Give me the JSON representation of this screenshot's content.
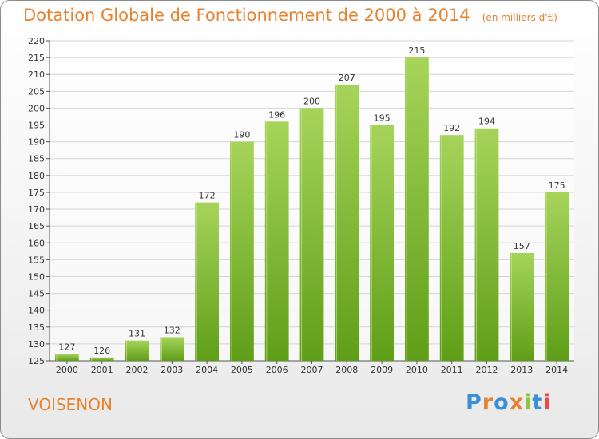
{
  "header": {
    "title": "Dotation Globale de Fonctionnement de 2000 à 2014",
    "unit": "(en milliers d'€)"
  },
  "footer": {
    "town": "VOISENON",
    "brand": "Proxiti"
  },
  "colors": {
    "title": "#e8822f",
    "bar_light": "#a6d45a",
    "bar_dark": "#5f9e18",
    "grid": "#d4d4d4",
    "axis": "#555555"
  },
  "chart_data": {
    "type": "bar",
    "title": "Dotation Globale de Fonctionnement de 2000 à 2014",
    "subtitle": "(en milliers d'€)",
    "categories": [
      "2000",
      "2001",
      "2002",
      "2003",
      "2004",
      "2005",
      "2006",
      "2007",
      "2008",
      "2009",
      "2010",
      "2011",
      "2012",
      "2013",
      "2014"
    ],
    "values": [
      127,
      126,
      131,
      132,
      172,
      190,
      196,
      200,
      207,
      195,
      215,
      192,
      194,
      157,
      175
    ],
    "ylim": [
      125,
      220
    ],
    "yticks": [
      125,
      130,
      135,
      140,
      145,
      150,
      155,
      160,
      165,
      170,
      175,
      180,
      185,
      190,
      195,
      200,
      205,
      210,
      215,
      220
    ],
    "grid": true,
    "legend": "none"
  }
}
